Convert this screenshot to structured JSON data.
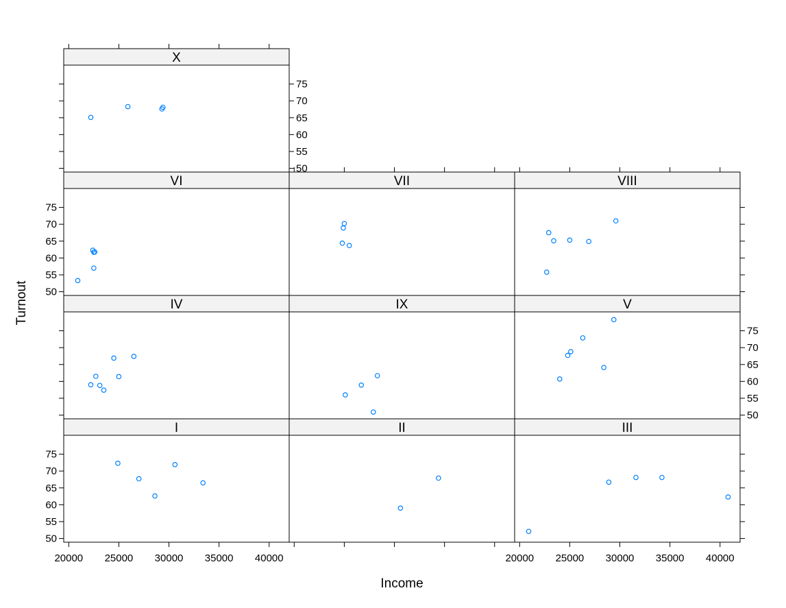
{
  "chart_data": {
    "type": "scatter",
    "xlabel": "Income",
    "ylabel": "Turnout",
    "xlim": [
      19500,
      42000
    ],
    "ylim": [
      48.9,
      80.6
    ],
    "x_ticks": [
      20000,
      25000,
      30000,
      35000,
      40000
    ],
    "y_ticks": [
      50,
      55,
      60,
      65,
      70,
      75
    ],
    "point_color": "#0080ff",
    "panels": [
      {
        "label": "I",
        "x": [
          24900,
          27000,
          28600,
          30600,
          33400
        ],
        "y": [
          72.3,
          67.7,
          62.6,
          71.9,
          66.5
        ]
      },
      {
        "label": "II",
        "x": [
          30600,
          34400
        ],
        "y": [
          59.0,
          67.9
        ]
      },
      {
        "label": "III",
        "x": [
          20900,
          28900,
          31600,
          34200,
          40800
        ],
        "y": [
          52.1,
          66.7,
          68.1,
          68.1,
          62.3
        ]
      },
      {
        "label": "IV",
        "x": [
          22200,
          22700,
          23100,
          23500,
          25000,
          24500,
          26500
        ],
        "y": [
          59.0,
          61.5,
          58.8,
          57.4,
          61.4,
          66.9,
          67.4
        ]
      },
      {
        "label": "IX",
        "x": [
          25100,
          26700,
          28300,
          27900
        ],
        "y": [
          56.0,
          58.9,
          61.7,
          50.9
        ]
      },
      {
        "label": "V",
        "x": [
          24000,
          24800,
          25100,
          26300,
          28400,
          29400
        ],
        "y": [
          60.7,
          67.7,
          68.8,
          72.9,
          64.1,
          78.3
        ]
      },
      {
        "label": "VI",
        "x": [
          20900,
          22500,
          22600,
          22500,
          22400
        ],
        "y": [
          53.3,
          57.0,
          61.8,
          61.7,
          62.3
        ]
      },
      {
        "label": "VII",
        "x": [
          24800,
          25000,
          25500,
          24900
        ],
        "y": [
          64.4,
          70.2,
          63.7,
          68.9
        ]
      },
      {
        "label": "VIII",
        "x": [
          22700,
          22900,
          23400,
          25000,
          26900,
          29600
        ],
        "y": [
          55.8,
          67.5,
          65.1,
          65.3,
          64.9,
          71.0
        ]
      },
      {
        "label": "X",
        "x": [
          22200,
          25900,
          29300,
          29400
        ],
        "y": [
          65.1,
          68.3,
          67.6,
          68.1
        ]
      }
    ]
  }
}
